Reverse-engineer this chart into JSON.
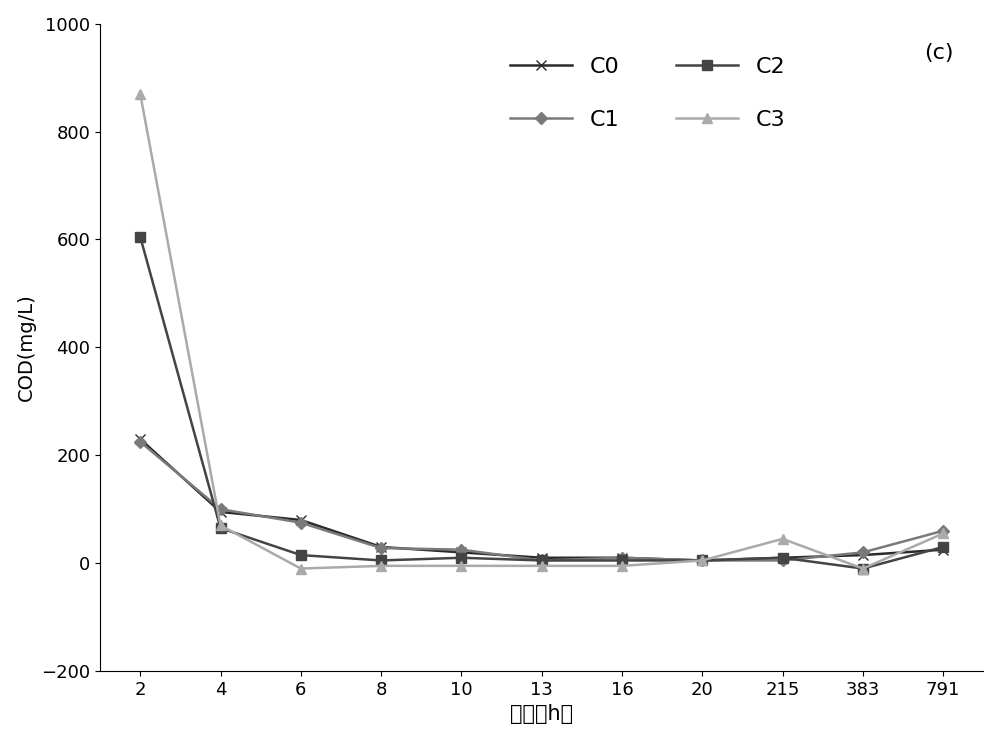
{
  "title_annotation": "(c)",
  "xlabel": "时间（h）",
  "ylabel": "COD(mg/L)",
  "ylim": [
    -200,
    1000
  ],
  "yticks": [
    -200,
    0,
    200,
    400,
    600,
    800,
    1000
  ],
  "x_labels": [
    "2",
    "4",
    "6",
    "8",
    "10",
    "13",
    "16",
    "20",
    "215",
    "383",
    "791"
  ],
  "x_positions": [
    0,
    1,
    2,
    3,
    4,
    5,
    6,
    7,
    8,
    9,
    10
  ],
  "series_order": [
    "C0",
    "C1",
    "C2",
    "C3"
  ],
  "series": {
    "C0": {
      "values": [
        230,
        95,
        80,
        30,
        20,
        10,
        10,
        5,
        10,
        15,
        25
      ],
      "color": "#2a2a2a",
      "marker": "x",
      "linewidth": 1.8,
      "markersize": 7
    },
    "C1": {
      "values": [
        225,
        100,
        75,
        28,
        25,
        5,
        10,
        5,
        5,
        20,
        60
      ],
      "color": "#7a7a7a",
      "marker": "D",
      "linewidth": 1.8,
      "markersize": 6
    },
    "C2": {
      "values": [
        605,
        65,
        15,
        5,
        10,
        5,
        5,
        5,
        10,
        -10,
        30
      ],
      "color": "#444444",
      "marker": "s",
      "linewidth": 1.8,
      "markersize": 7
    },
    "C3": {
      "values": [
        870,
        70,
        -10,
        -5,
        -5,
        -5,
        -5,
        5,
        45,
        -10,
        55
      ],
      "color": "#aaaaaa",
      "marker": "^",
      "linewidth": 1.8,
      "markersize": 7
    }
  },
  "background_color": "#ffffff",
  "figure_width": 10.0,
  "figure_height": 7.41,
  "dpi": 100
}
